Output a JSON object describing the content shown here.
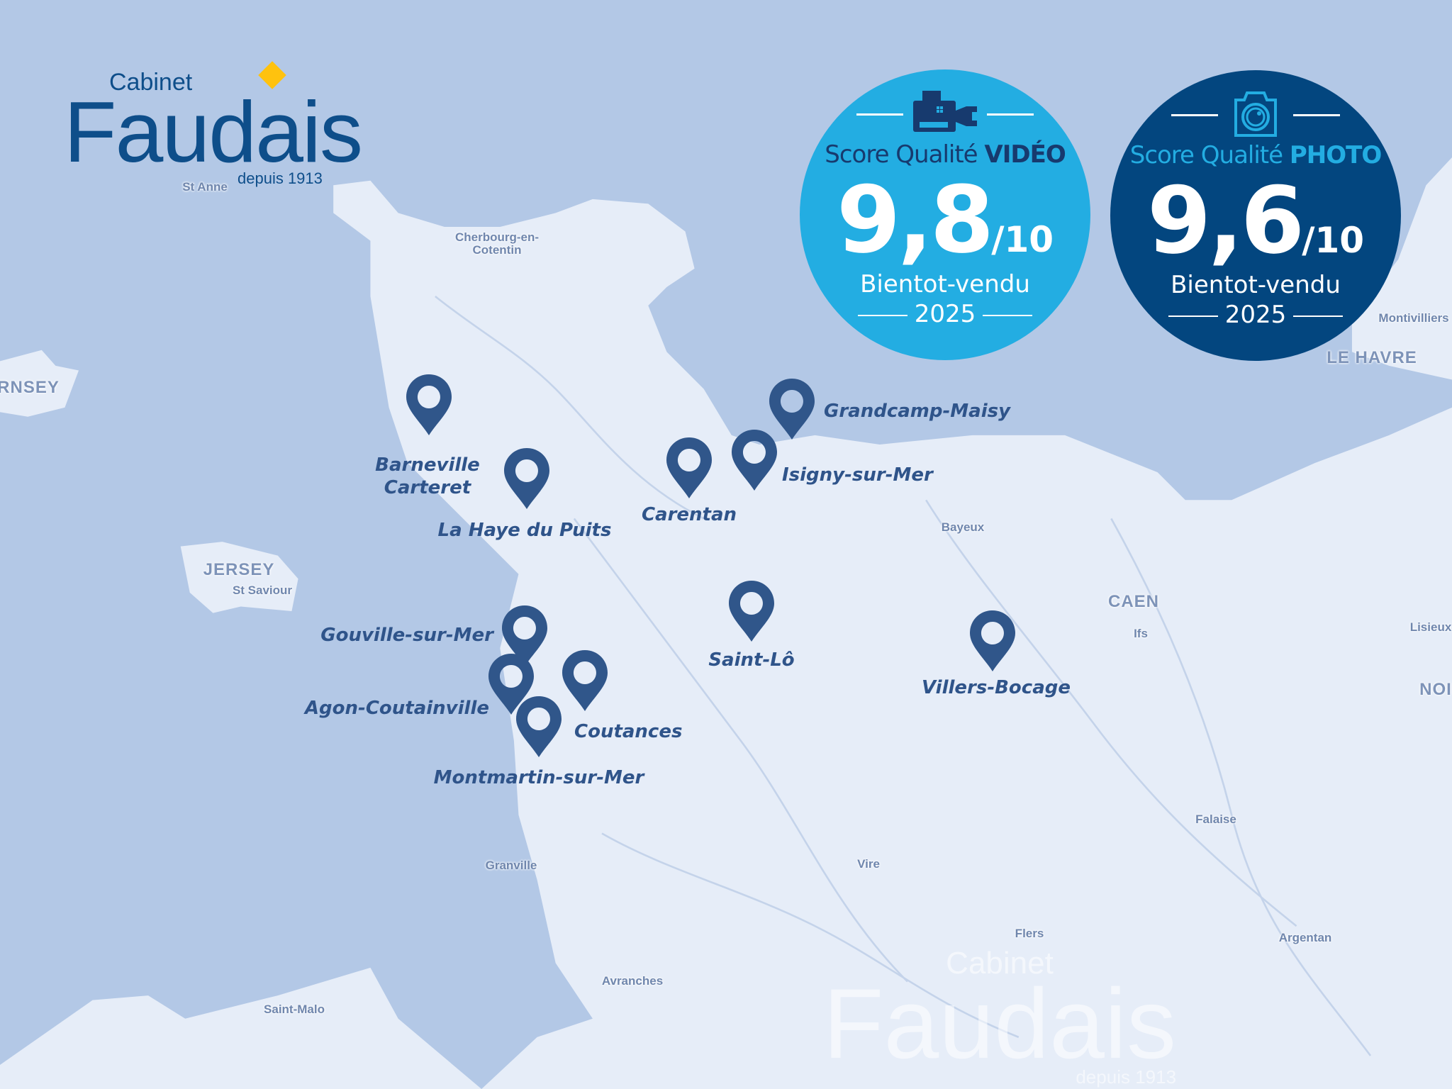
{
  "colors": {
    "sea": "#b3c8e6",
    "land": "#e6edf8",
    "pin": "#30568a",
    "video_badge": "#23ade2",
    "photo_badge": "#03467f",
    "logo_blue": "#0e4e8a",
    "logo_diamond": "#ffc20e"
  },
  "logo": {
    "cabinet": "Cabinet",
    "name": "Faudais",
    "since": "depuis 1913"
  },
  "watermark": {
    "cabinet": "Cabinet",
    "name": "Faudais",
    "since": "depuis 1913"
  },
  "badges": {
    "video": {
      "icon": "video-camera-icon",
      "title_prefix": "Score Qualité ",
      "title_strong": "VIDÉO",
      "score": "9,8",
      "out_of": "/10",
      "brand": "Bientot-vendu",
      "year": "2025"
    },
    "photo": {
      "icon": "camera-icon",
      "title_prefix": "Score Qualité ",
      "title_strong": "PHOTO",
      "score": "9,6",
      "out_of": "/10",
      "brand": "Bientot-vendu",
      "year": "2025"
    }
  },
  "cities": [
    {
      "name": "Barneville",
      "name2": "Carteret"
    },
    {
      "name": "La Haye du Puits"
    },
    {
      "name": "Carentan"
    },
    {
      "name": "Isigny-sur-Mer"
    },
    {
      "name": "Grandcamp-Maisy"
    },
    {
      "name": "Saint-Lô"
    },
    {
      "name": "Villers-Bocage"
    },
    {
      "name": "Gouville-sur-Mer"
    },
    {
      "name": "Agon-Coutainville"
    },
    {
      "name": "Coutances"
    },
    {
      "name": "Montmartin-sur-Mer"
    }
  ],
  "places": [
    "St Anne",
    "Cherbourg-en-\nCotentin",
    "RNSEY",
    "JERSEY",
    "St Saviour",
    "Bayeux",
    "CAEN",
    "Ifs",
    "Lisieux",
    "NOI",
    "Montivilliers",
    "LE HAVRE",
    "Falaise",
    "Granville",
    "Vire",
    "Flers",
    "Argentan",
    "Avranches",
    "Saint-Malo"
  ]
}
